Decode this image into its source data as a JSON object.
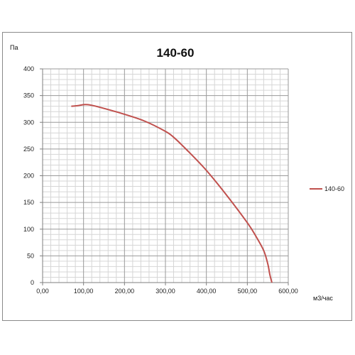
{
  "chart_data": {
    "type": "line",
    "title": "140-60",
    "xlabel": "м3/час",
    "ylabel": "Па",
    "xlim": [
      0,
      600
    ],
    "ylim": [
      0,
      400
    ],
    "x_ticks": [
      "0,00",
      "100,00",
      "200,00",
      "300,00",
      "400,00",
      "500,00",
      "600,00"
    ],
    "y_ticks": [
      "0",
      "50",
      "100",
      "150",
      "200",
      "250",
      "300",
      "350",
      "400"
    ],
    "grid": true,
    "legend_position": "right",
    "series": [
      {
        "name": "140-60",
        "color": "#c0504d",
        "x": [
          70,
          85,
          100,
          110,
          125,
          150,
          200,
          250,
          300,
          320,
          350,
          400,
          450,
          500,
          520,
          540,
          550,
          555,
          560
        ],
        "y": [
          330,
          331,
          333,
          333,
          331,
          326,
          315,
          302,
          283,
          272,
          250,
          210,
          163,
          112,
          88,
          60,
          35,
          15,
          0
        ]
      }
    ]
  }
}
